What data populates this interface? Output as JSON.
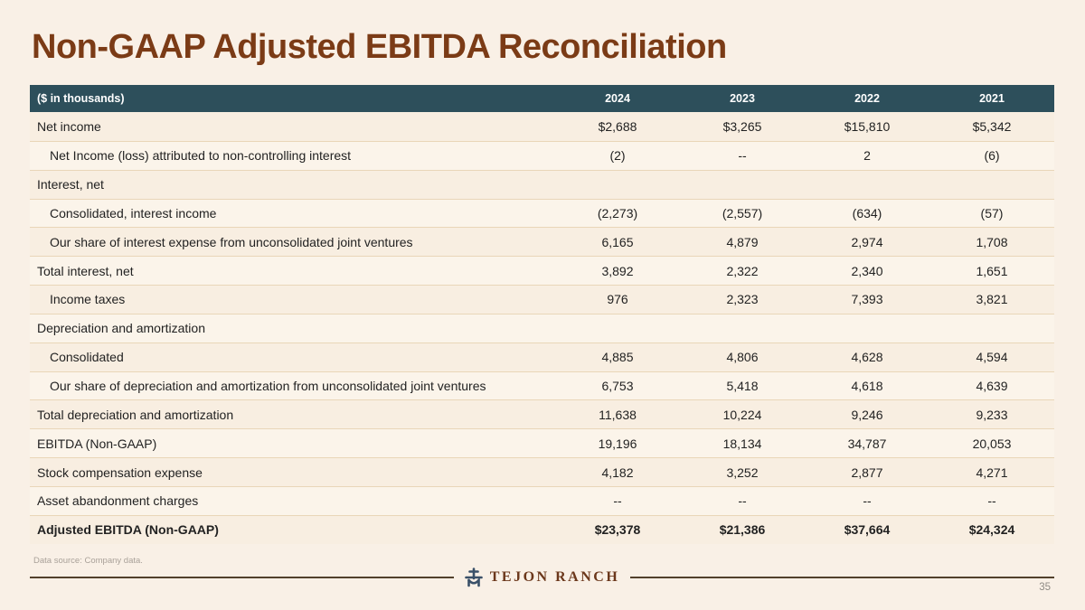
{
  "slide": {
    "title": "Non-GAAP Adjusted EBITDA Reconciliation",
    "footnote": "Data source: Company data.",
    "page_number": "35",
    "logo_text": "TEJON RANCH"
  },
  "colors": {
    "background": "#f9f0e6",
    "title_brown": "#7b3b16",
    "header_teal": "#2d4f5b",
    "header_text": "#ffffff",
    "row_separator": "#e9d6b8",
    "body_text": "#222222",
    "logo_brown": "#6b371b",
    "logo_brand_blue": "#3a5068",
    "footer_rule": "#52402c"
  },
  "table": {
    "header": {
      "label": "($ in thousands)",
      "years": [
        "2024",
        "2023",
        "2022",
        "2021"
      ]
    },
    "rows": [
      {
        "label": "Net income",
        "indent": false,
        "bold": false,
        "values": [
          "$2,688",
          "$3,265",
          "$15,810",
          "$5,342"
        ]
      },
      {
        "label": "Net Income (loss) attributed to non-controlling interest",
        "indent": true,
        "bold": false,
        "values": [
          "(2)",
          "--",
          "2",
          "(6)"
        ]
      },
      {
        "label": "Interest, net",
        "indent": false,
        "bold": false,
        "values": [
          "",
          "",
          "",
          ""
        ]
      },
      {
        "label": "Consolidated, interest income",
        "indent": true,
        "bold": false,
        "values": [
          "(2,273)",
          "(2,557)",
          "(634)",
          "(57)"
        ]
      },
      {
        "label": "Our share of interest expense from unconsolidated joint ventures",
        "indent": true,
        "bold": false,
        "values": [
          "6,165",
          "4,879",
          "2,974",
          "1,708"
        ]
      },
      {
        "label": "Total interest, net",
        "indent": false,
        "bold": false,
        "values": [
          "3,892",
          "2,322",
          "2,340",
          "1,651"
        ]
      },
      {
        "label": "Income taxes",
        "indent": true,
        "bold": false,
        "values": [
          "976",
          "2,323",
          "7,393",
          "3,821"
        ]
      },
      {
        "label": "Depreciation and amortization",
        "indent": false,
        "bold": false,
        "values": [
          "",
          "",
          "",
          ""
        ]
      },
      {
        "label": "Consolidated",
        "indent": true,
        "bold": false,
        "values": [
          "4,885",
          "4,806",
          "4,628",
          "4,594"
        ]
      },
      {
        "label": "Our share of depreciation and amortization from unconsolidated joint ventures",
        "indent": true,
        "bold": false,
        "values": [
          "6,753",
          "5,418",
          "4,618",
          "4,639"
        ]
      },
      {
        "label": "Total depreciation and amortization",
        "indent": false,
        "bold": false,
        "values": [
          "11,638",
          "10,224",
          "9,246",
          "9,233"
        ]
      },
      {
        "label": "EBITDA (Non-GAAP)",
        "indent": false,
        "bold": false,
        "values": [
          "19,196",
          "18,134",
          "34,787",
          "20,053"
        ]
      },
      {
        "label": "Stock compensation expense",
        "indent": false,
        "bold": false,
        "values": [
          "4,182",
          "3,252",
          "2,877",
          "4,271"
        ]
      },
      {
        "label": "Asset abandonment charges",
        "indent": false,
        "bold": false,
        "values": [
          "--",
          "--",
          "--",
          "--"
        ]
      },
      {
        "label": "Adjusted EBITDA (Non-GAAP)",
        "indent": false,
        "bold": true,
        "values": [
          "$23,378",
          "$21,386",
          "$37,664",
          "$24,324"
        ]
      }
    ]
  }
}
